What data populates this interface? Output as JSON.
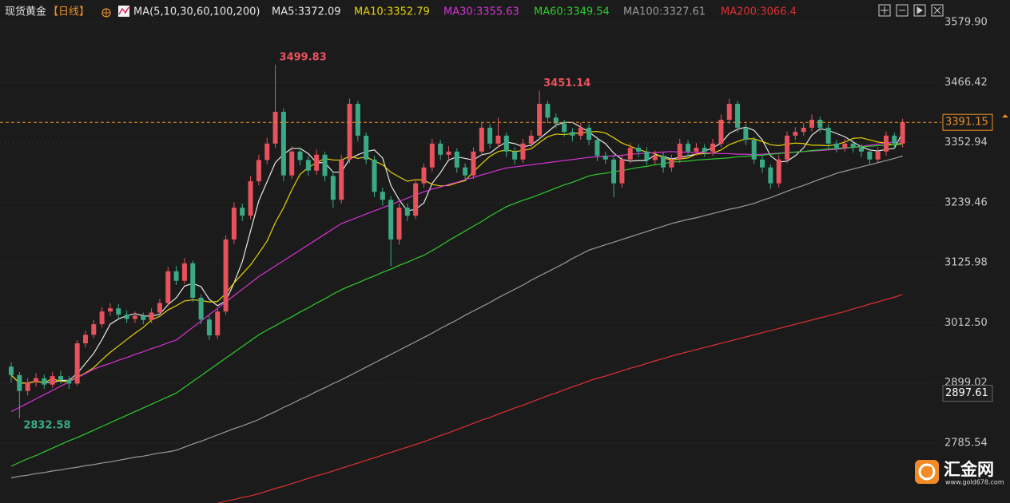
{
  "header": {
    "instrument": "现货黄金",
    "period": "【日线】",
    "indicator": "MA(5,10,30,60,100,200)"
  },
  "logo": {
    "name": "汇金网",
    "url": "www.gold678.com"
  },
  "chart_data": {
    "type": "candlestick",
    "up_color": "#e8525c",
    "down_color": "#3aaa86",
    "last_color": "#e8902a",
    "ylim": [
      2672.5,
      3622.1
    ],
    "yticks": [
      {
        "value": 3579.9,
        "label": "3579.90"
      },
      3466.42,
      3352.94,
      3239.46,
      3125.98,
      {
        "value": 3012.5,
        "label": "3012.50"
      },
      2899.02,
      2785.54
    ],
    "grid": true,
    "price_marks": [
      2897.61
    ],
    "open": [
      2930,
      2914,
      2884,
      2900,
      2908,
      2896,
      2912,
      2905,
      2898,
      2974,
      2990,
      3010,
      3034,
      3040,
      3028,
      3020,
      3026,
      3018,
      3032,
      3050,
      3110,
      3092,
      3125,
      3060,
      3019,
      2989,
      3034,
      3170,
      3230,
      3215,
      3280,
      3320,
      3351,
      3411,
      3291,
      3336,
      3320,
      3300,
      3330,
      3290,
      3245,
      3321,
      3426,
      3366,
      3321,
      3260,
      3245,
      3170,
      3230,
      3215,
      3276,
      3306,
      3351,
      3330,
      3336,
      3306,
      3291,
      3336,
      3381,
      3351,
      3366,
      3336,
      3321,
      3351,
      3366,
      3426,
      3400,
      3389,
      3373,
      3366,
      3381,
      3358,
      3328,
      3321,
      3276,
      3321,
      3343,
      3336,
      3320,
      3328,
      3306,
      3321,
      3351,
      3336,
      3343,
      3336,
      3351,
      3396,
      3426,
      3381,
      3358,
      3321,
      3306,
      3276,
      3321,
      3366,
      3373,
      3381,
      3396,
      3381,
      3351,
      3343,
      3351,
      3343,
      3336,
      3321,
      3336,
      3366,
      3351
    ],
    "high": [
      2938,
      2920,
      2908,
      2918,
      2915,
      2920,
      2922,
      2912,
      2980,
      2998,
      3018,
      3042,
      3050,
      3048,
      3036,
      3034,
      3032,
      3040,
      3058,
      3118,
      3120,
      3135,
      3130,
      3066,
      3026,
      3040,
      3178,
      3240,
      3238,
      3290,
      3330,
      3362,
      3499.83,
      3418,
      3346,
      3344,
      3328,
      3340,
      3336,
      3298,
      3330,
      3436,
      3432,
      3372,
      3328,
      3268,
      3252,
      3238,
      3238,
      3284,
      3314,
      3360,
      3358,
      3346,
      3342,
      3314,
      3344,
      3390,
      3388,
      3400,
      3372,
      3344,
      3360,
      3376,
      3451.14,
      3432,
      3408,
      3396,
      3380,
      3390,
      3388,
      3364,
      3336,
      3328,
      3330,
      3352,
      3350,
      3344,
      3338,
      3334,
      3330,
      3360,
      3358,
      3352,
      3350,
      3360,
      3406,
      3436,
      3432,
      3388,
      3364,
      3328,
      3312,
      3330,
      3374,
      3382,
      3390,
      3406,
      3402,
      3388,
      3358,
      3360,
      3358,
      3350,
      3342,
      3344,
      3374,
      3372,
      3398
    ],
    "low": [
      2900,
      2832.58,
      2876,
      2892,
      2888,
      2890,
      2898,
      2888,
      2894,
      2966,
      2984,
      3004,
      3026,
      3020,
      3012,
      3012,
      3010,
      3012,
      3026,
      3044,
      3084,
      3086,
      3052,
      3010,
      2980,
      2982,
      3028,
      3162,
      3205,
      3208,
      3272,
      3312,
      3343,
      3280,
      3284,
      3310,
      3290,
      3292,
      3280,
      3230,
      3238,
      3314,
      3356,
      3312,
      3250,
      3234,
      3120,
      3160,
      3205,
      3208,
      3268,
      3298,
      3320,
      3322,
      3296,
      3282,
      3284,
      3328,
      3342,
      3344,
      3326,
      3312,
      3314,
      3344,
      3358,
      3390,
      3380,
      3364,
      3356,
      3358,
      3348,
      3318,
      3312,
      3250,
      3268,
      3314,
      3326,
      3310,
      3312,
      3296,
      3298,
      3314,
      3326,
      3328,
      3326,
      3328,
      3344,
      3388,
      3372,
      3348,
      3312,
      3296,
      3266,
      3268,
      3314,
      3358,
      3366,
      3374,
      3372,
      3342,
      3334,
      3336,
      3334,
      3326,
      3312,
      3314,
      3328,
      3342,
      3344
    ],
    "close": [
      2914,
      2884,
      2900,
      2908,
      2896,
      2912,
      2905,
      2898,
      2974,
      2990,
      3010,
      3034,
      3040,
      3028,
      3020,
      3026,
      3018,
      3032,
      3050,
      3110,
      3092,
      3125,
      3060,
      3019,
      2989,
      3034,
      3170,
      3230,
      3215,
      3280,
      3320,
      3351,
      3411,
      3291,
      3336,
      3320,
      3300,
      3330,
      3290,
      3245,
      3321,
      3426,
      3366,
      3321,
      3260,
      3245,
      3170,
      3230,
      3215,
      3276,
      3306,
      3351,
      3330,
      3336,
      3306,
      3291,
      3336,
      3381,
      3351,
      3366,
      3336,
      3321,
      3351,
      3366,
      3426,
      3400,
      3389,
      3373,
      3366,
      3381,
      3358,
      3328,
      3321,
      3276,
      3321,
      3343,
      3336,
      3320,
      3328,
      3306,
      3321,
      3351,
      3336,
      3343,
      3336,
      3351,
      3396,
      3426,
      3381,
      3358,
      3321,
      3306,
      3276,
      3321,
      3366,
      3373,
      3381,
      3396,
      3381,
      3351,
      3343,
      3351,
      3343,
      3336,
      3321,
      3336,
      3366,
      3351,
      3391.15
    ],
    "series": [
      {
        "name": "MA5:3372.09",
        "color": "#e6e6e6",
        "values": [
          2914,
          2899,
          2899,
          2902,
          2900,
          2900,
          2904,
          2904,
          2917,
          2936,
          2955,
          2981,
          3010,
          3020,
          3026,
          3030,
          3026,
          3025,
          3029,
          3047,
          3060,
          3082,
          3087,
          3081,
          3057,
          3045,
          3054,
          3088,
          3128,
          3186,
          3243,
          3279,
          3315,
          3331,
          3342,
          3342,
          3332,
          3315,
          3315,
          3297,
          3297,
          3322,
          3330,
          3336,
          3339,
          3324,
          3272,
          3245,
          3224,
          3227,
          3239,
          3276,
          3296,
          3320,
          3326,
          3323,
          3320,
          3330,
          3333,
          3345,
          3354,
          3351,
          3345,
          3348,
          3360,
          3373,
          3386,
          3391,
          3391,
          3382,
          3373,
          3361,
          3351,
          3333,
          3321,
          3318,
          3319,
          3319,
          3330,
          3327,
          3322,
          3325,
          3328,
          3331,
          3337,
          3343,
          3352,
          3370,
          3378,
          3382,
          3376,
          3358,
          3328,
          3316,
          3318,
          3328,
          3343,
          3367,
          3379,
          3376,
          3370,
          3364,
          3354,
          3345,
          3339,
          3337,
          3340,
          3342,
          3372.09
        ]
      },
      {
        "name": "MA10:3352.79",
        "color": "#e6d200",
        "values": [
          2914,
          2899,
          2899,
          2902,
          2900,
          2907,
          2902,
          2902,
          2910,
          2918,
          2928,
          2943,
          2957,
          2969,
          2981,
          2993,
          3004,
          3018,
          3025,
          3037,
          3045,
          3054,
          3056,
          3055,
          3052,
          3053,
          3068,
          3088,
          3105,
          3122,
          3144,
          3167,
          3202,
          3230,
          3264,
          3293,
          3306,
          3315,
          3323,
          3320,
          3320,
          3327,
          3323,
          3326,
          3318,
          3311,
          3297,
          3288,
          3280,
          3283,
          3282,
          3274,
          3271,
          3272,
          3277,
          3281,
          3298,
          3313,
          3327,
          3336,
          3339,
          3336,
          3338,
          3341,
          3353,
          3364,
          3369,
          3368,
          3370,
          3371,
          3373,
          3374,
          3371,
          3362,
          3352,
          3346,
          3340,
          3335,
          3332,
          3324,
          3320,
          3322,
          3324,
          3331,
          3332,
          3333,
          3339,
          3349,
          3355,
          3360,
          3360,
          3355,
          3349,
          3347,
          3350,
          3352,
          3351,
          3348,
          3348,
          3347,
          3349,
          3354,
          3361,
          3362,
          3358,
          3354,
          3352,
          3348,
          3352.79
        ]
      },
      {
        "name": "MA30:3355.63",
        "color": "#d633d6",
        "values": [
          2845,
          2853,
          2861,
          2869,
          2877,
          2885,
          2893,
          2901,
          2909,
          2917,
          2925,
          2931,
          2936,
          2942,
          2947,
          2953,
          2958,
          2964,
          2969,
          2975,
          2980,
          2992,
          3004,
          3016,
          3028,
          3040,
          3052,
          3064,
          3076,
          3088,
          3100,
          3110,
          3120,
          3130,
          3140,
          3150,
          3160,
          3170,
          3180,
          3190,
          3200,
          3206,
          3212,
          3218,
          3224,
          3230,
          3236,
          3242,
          3248,
          3254,
          3260,
          3265,
          3269,
          3274,
          3278,
          3283,
          3287,
          3292,
          3296,
          3301,
          3305,
          3307,
          3309,
          3311,
          3313,
          3315,
          3317,
          3319,
          3321,
          3323,
          3325,
          3326,
          3327,
          3328,
          3329,
          3331,
          3332,
          3333,
          3334,
          3335,
          3336,
          3335,
          3335,
          3334,
          3334,
          3333,
          3332,
          3332,
          3331,
          3331,
          3330,
          3331,
          3332,
          3333,
          3334,
          3335,
          3336,
          3337,
          3338,
          3339,
          3340,
          3342,
          3344,
          3346,
          3348,
          3350,
          3352,
          3354,
          3355.63
        ]
      },
      {
        "name": "MA60:3349.54",
        "color": "#2ecc2e",
        "values": [
          2742,
          2749,
          2756,
          2762,
          2769,
          2776,
          2783,
          2790,
          2796,
          2803,
          2810,
          2817,
          2824,
          2831,
          2838,
          2845,
          2852,
          2859,
          2866,
          2873,
          2880,
          2891,
          2902,
          2913,
          2924,
          2935,
          2946,
          2957,
          2968,
          2979,
          2990,
          2999,
          3007,
          3016,
          3024,
          3033,
          3041,
          3050,
          3058,
          3067,
          3075,
          3082,
          3088,
          3095,
          3101,
          3108,
          3114,
          3121,
          3127,
          3134,
          3140,
          3149,
          3158,
          3168,
          3177,
          3186,
          3195,
          3204,
          3214,
          3223,
          3232,
          3238,
          3244,
          3249,
          3255,
          3261,
          3267,
          3273,
          3278,
          3284,
          3290,
          3293,
          3295,
          3298,
          3300,
          3303,
          3306,
          3308,
          3311,
          3313,
          3316,
          3317,
          3318,
          3320,
          3321,
          3322,
          3323,
          3324,
          3326,
          3327,
          3328,
          3329,
          3331,
          3332,
          3334,
          3335,
          3336,
          3338,
          3339,
          3341,
          3342,
          3343,
          3344,
          3345,
          3346,
          3347,
          3348,
          3349,
          3349.54
        ]
      },
      {
        "name": "MA100:3327.61",
        "color": "#9a9a9a",
        "values": [
          2720,
          2723,
          2725,
          2728,
          2730,
          2733,
          2735,
          2738,
          2740,
          2743,
          2745,
          2748,
          2750,
          2753,
          2756,
          2759,
          2761,
          2764,
          2767,
          2769,
          2772,
          2778,
          2784,
          2789,
          2795,
          2801,
          2807,
          2813,
          2818,
          2824,
          2830,
          2838,
          2845,
          2853,
          2860,
          2868,
          2875,
          2883,
          2890,
          2898,
          2905,
          2913,
          2921,
          2929,
          2937,
          2945,
          2953,
          2961,
          2969,
          2977,
          2985,
          2993,
          3002,
          3010,
          3018,
          3027,
          3035,
          3043,
          3051,
          3060,
          3068,
          3076,
          3084,
          3093,
          3101,
          3109,
          3117,
          3125,
          3134,
          3142,
          3150,
          3155,
          3160,
          3165,
          3170,
          3175,
          3180,
          3185,
          3190,
          3195,
          3200,
          3204,
          3208,
          3211,
          3215,
          3219,
          3223,
          3227,
          3230,
          3234,
          3238,
          3244,
          3249,
          3255,
          3261,
          3267,
          3272,
          3278,
          3284,
          3289,
          3295,
          3299,
          3303,
          3307,
          3311,
          3315,
          3319,
          3323,
          3327.61
        ]
      },
      {
        "name": "MA200:3066.4",
        "color": "#e03030",
        "values": [
          null,
          null,
          null,
          null,
          null,
          null,
          null,
          null,
          null,
          null,
          null,
          null,
          null,
          null,
          null,
          null,
          null,
          null,
          null,
          null,
          null,
          null,
          null,
          null,
          null,
          2672,
          2676,
          2679,
          2683,
          2686,
          2690,
          2695,
          2700,
          2704,
          2709,
          2714,
          2719,
          2724,
          2728,
          2733,
          2738,
          2743,
          2748,
          2753,
          2758,
          2763,
          2768,
          2773,
          2778,
          2783,
          2788,
          2794,
          2800,
          2805,
          2811,
          2817,
          2823,
          2829,
          2834,
          2840,
          2846,
          2852,
          2857,
          2863,
          2869,
          2875,
          2880,
          2886,
          2892,
          2897,
          2903,
          2908,
          2912,
          2917,
          2922,
          2927,
          2931,
          2936,
          2941,
          2945,
          2950,
          2954,
          2958,
          2962,
          2966,
          2970,
          2974,
          2978,
          2982,
          2986,
          2990,
          2994,
          2998,
          3002,
          3006,
          3010,
          3014,
          3018,
          3022,
          3026,
          3030,
          3034,
          3039,
          3043,
          3048,
          3052,
          3057,
          3061,
          3066.4
        ]
      }
    ]
  }
}
